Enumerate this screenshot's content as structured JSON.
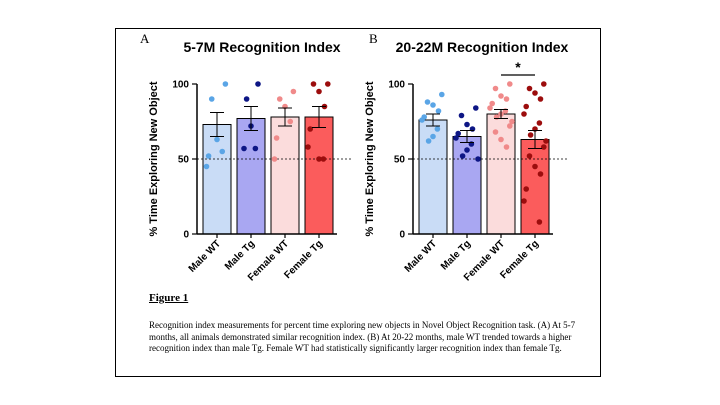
{
  "figure": {
    "label": "Figure 1",
    "caption": "Recognition index measurements for percent time exploring new objects in Novel Object Recognition task. (A) At 5-7 months, all animals demonstrated similar recognition index. (B) At 20-22 months, male WT trended towards a higher recognition index than male Tg. Female WT had statistically significantly larger recognition index than female Tg."
  },
  "colors": {
    "male_wt_fill": "#c9dcf6",
    "male_wt_dot": "#5aa5e6",
    "male_tg_fill": "#a9a7f2",
    "male_tg_dot": "#0d1685",
    "female_wt_fill": "#fbdcdc",
    "female_wt_dot": "#f08a8a",
    "female_tg_fill": "#fb5c5c",
    "female_tg_dot": "#9c0d0d"
  },
  "chart_data": [
    {
      "type": "bar",
      "panel_letter": "A",
      "title": "5-7M Recognition Index",
      "ylabel": "% Time Exploring New Object",
      "xlabel": "",
      "ylim": [
        0,
        100
      ],
      "yticks": [
        0,
        50,
        100
      ],
      "reference_line": 50,
      "categories": [
        "Male WT",
        "Male Tg",
        "Female WT",
        "Female Tg"
      ],
      "values": [
        73,
        77,
        78,
        78
      ],
      "sem": [
        8,
        8,
        6,
        7
      ],
      "points": [
        [
          100,
          90,
          63,
          55,
          52,
          45
        ],
        [
          100,
          90,
          72,
          57,
          57
        ],
        [
          95,
          90,
          85,
          75,
          64,
          50
        ],
        [
          100,
          100,
          95,
          85,
          70,
          58,
          50,
          50
        ]
      ],
      "annotations": []
    },
    {
      "type": "bar",
      "panel_letter": "B",
      "title": "20-22M Recognition Index",
      "ylabel": "% Time Exploring New Object",
      "xlabel": "",
      "ylim": [
        0,
        100
      ],
      "yticks": [
        0,
        50,
        100
      ],
      "reference_line": 50,
      "categories": [
        "Male WT",
        "Male Tg",
        "Female WT",
        "Female Tg"
      ],
      "values": [
        76,
        65,
        80,
        63
      ],
      "sem": [
        4,
        4,
        3,
        6
      ],
      "points": [
        [
          93,
          88,
          86,
          82,
          78,
          76,
          70,
          65,
          62
        ],
        [
          84,
          79,
          73,
          70,
          67,
          64,
          60,
          56,
          52,
          50
        ],
        [
          100,
          97,
          92,
          90,
          87,
          84,
          82,
          80,
          78,
          75,
          72,
          68,
          63,
          58
        ],
        [
          100,
          97,
          94,
          90,
          85,
          80,
          74,
          70,
          66,
          62,
          58,
          52,
          45,
          40,
          30,
          22,
          8
        ]
      ],
      "annotations": [
        {
          "text": "*",
          "between": [
            "Female WT",
            "Female Tg"
          ]
        }
      ]
    }
  ]
}
